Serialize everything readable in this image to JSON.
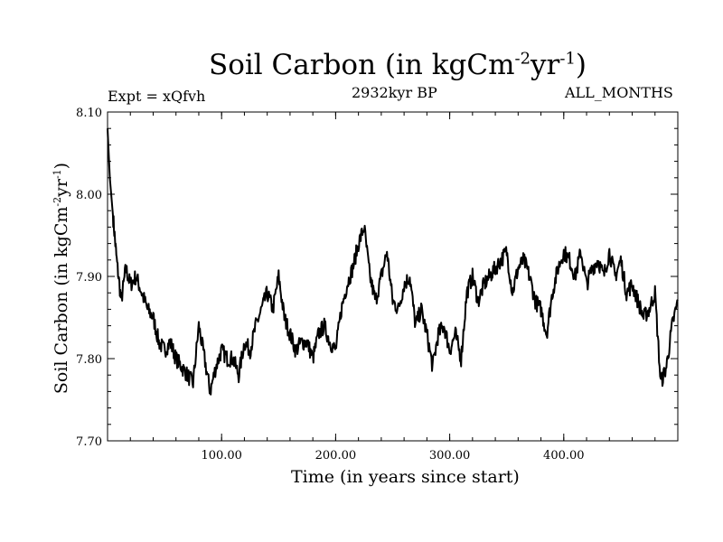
{
  "chart_data": {
    "type": "line",
    "title_main": "Soil Carbon (in kgCm",
    "title_exp1": "-2",
    "title_mid": "yr",
    "title_exp2": "-1",
    "title_end": ")",
    "expt_label": "Expt = xQfvh",
    "period_label": "2932kyr BP",
    "months_label": "ALL_MONTHS",
    "xlabel": "Time (in years since start)",
    "ylabel_main": "Soil Carbon (in kgCm",
    "ylabel_exp1": "-2",
    "ylabel_mid": "yr",
    "ylabel_exp2": "-1",
    "ylabel_end": ")",
    "xlim": [
      0,
      500
    ],
    "ylim": [
      7.7,
      8.1
    ],
    "xticks": [
      100,
      200,
      300,
      400
    ],
    "xtick_labels": [
      "100.00",
      "200.00",
      "300.00",
      "400.00"
    ],
    "yticks": [
      7.7,
      7.8,
      7.9,
      8.0,
      8.1
    ],
    "ytick_labels": [
      "7.70",
      "7.80",
      "7.90",
      "8.00",
      "8.10"
    ],
    "series": [
      {
        "name": "Soil Carbon",
        "x": [
          0,
          2,
          5,
          8,
          12,
          16,
          20,
          25,
          30,
          35,
          40,
          45,
          50,
          55,
          60,
          65,
          70,
          75,
          80,
          85,
          90,
          95,
          100,
          105,
          110,
          115,
          120,
          125,
          130,
          135,
          140,
          145,
          150,
          155,
          160,
          165,
          170,
          175,
          180,
          185,
          190,
          195,
          200,
          205,
          210,
          215,
          220,
          225,
          230,
          235,
          240,
          245,
          250,
          255,
          260,
          265,
          270,
          275,
          280,
          285,
          290,
          295,
          300,
          305,
          310,
          315,
          320,
          325,
          330,
          335,
          340,
          345,
          350,
          355,
          360,
          365,
          370,
          375,
          380,
          385,
          390,
          395,
          400,
          405,
          410,
          415,
          420,
          425,
          430,
          435,
          440,
          445,
          450,
          455,
          460,
          465,
          470,
          475,
          480,
          485,
          490,
          495,
          500
        ],
        "values": [
          8.08,
          8.02,
          7.97,
          7.92,
          7.87,
          7.91,
          7.89,
          7.9,
          7.88,
          7.86,
          7.85,
          7.82,
          7.81,
          7.82,
          7.8,
          7.79,
          7.78,
          7.77,
          7.84,
          7.8,
          7.76,
          7.79,
          7.81,
          7.8,
          7.8,
          7.78,
          7.82,
          7.81,
          7.84,
          7.86,
          7.88,
          7.86,
          7.9,
          7.85,
          7.83,
          7.81,
          7.82,
          7.82,
          7.8,
          7.83,
          7.84,
          7.82,
          7.81,
          7.86,
          7.89,
          7.91,
          7.94,
          7.96,
          7.9,
          7.87,
          7.9,
          7.93,
          7.87,
          7.86,
          7.89,
          7.9,
          7.84,
          7.86,
          7.83,
          7.79,
          7.83,
          7.84,
          7.81,
          7.83,
          7.8,
          7.88,
          7.9,
          7.87,
          7.89,
          7.9,
          7.91,
          7.92,
          7.93,
          7.88,
          7.91,
          7.92,
          7.9,
          7.87,
          7.86,
          7.83,
          7.88,
          7.91,
          7.93,
          7.92,
          7.9,
          7.93,
          7.89,
          7.91,
          7.92,
          7.9,
          7.93,
          7.9,
          7.92,
          7.88,
          7.89,
          7.87,
          7.85,
          7.86,
          7.88,
          7.77,
          7.79,
          7.84,
          7.87
        ]
      }
    ]
  }
}
